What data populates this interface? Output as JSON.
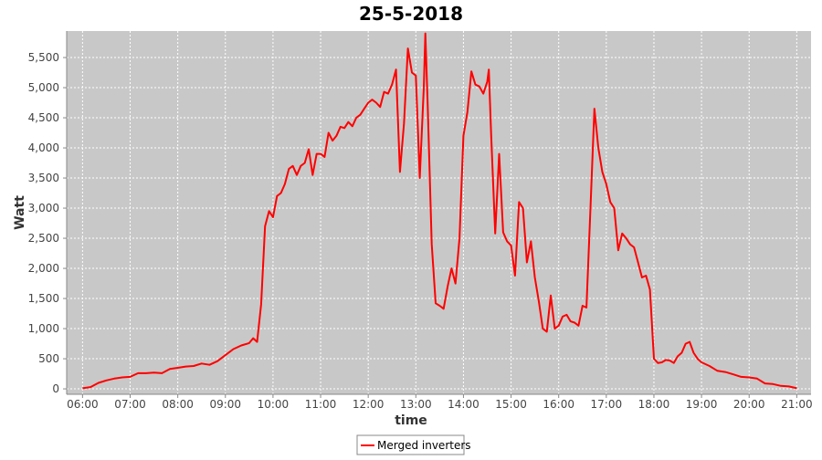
{
  "chart_data": {
    "type": "line",
    "title": "25-5-2018",
    "x_label": "time",
    "y_label": "Watt",
    "x": [
      "06:00",
      "06:10",
      "06:20",
      "06:30",
      "06:40",
      "06:50",
      "07:00",
      "07:10",
      "07:20",
      "07:30",
      "07:40",
      "07:50",
      "08:00",
      "08:10",
      "08:20",
      "08:30",
      "08:40",
      "08:50",
      "09:00",
      "09:10",
      "09:20",
      "09:30",
      "09:35",
      "09:40",
      "09:45",
      "09:50",
      "09:55",
      "10:00",
      "10:05",
      "10:10",
      "10:15",
      "10:20",
      "10:25",
      "10:30",
      "10:35",
      "10:40",
      "10:45",
      "10:50",
      "10:55",
      "11:00",
      "11:05",
      "11:10",
      "11:15",
      "11:20",
      "11:25",
      "11:30",
      "11:35",
      "11:40",
      "11:45",
      "11:50",
      "11:55",
      "12:00",
      "12:05",
      "12:10",
      "12:15",
      "12:20",
      "12:25",
      "12:30",
      "12:35",
      "12:40",
      "12:45",
      "12:50",
      "12:55",
      "13:00",
      "13:05",
      "13:10",
      "13:12",
      "13:15",
      "13:20",
      "13:25",
      "13:30",
      "13:35",
      "13:40",
      "13:45",
      "13:50",
      "13:55",
      "14:00",
      "14:05",
      "14:10",
      "14:15",
      "14:20",
      "14:25",
      "14:30",
      "14:32",
      "14:35",
      "14:40",
      "14:45",
      "14:50",
      "14:55",
      "15:00",
      "15:05",
      "15:10",
      "15:15",
      "15:20",
      "15:25",
      "15:30",
      "15:35",
      "15:40",
      "15:45",
      "15:50",
      "15:55",
      "16:00",
      "16:05",
      "16:10",
      "16:15",
      "16:20",
      "16:25",
      "16:30",
      "16:35",
      "16:40",
      "16:45",
      "16:50",
      "16:55",
      "17:00",
      "17:05",
      "17:10",
      "17:15",
      "17:20",
      "17:25",
      "17:30",
      "17:35",
      "17:40",
      "17:45",
      "17:50",
      "17:55",
      "18:00",
      "18:05",
      "18:10",
      "18:15",
      "18:20",
      "18:25",
      "18:30",
      "18:35",
      "18:40",
      "18:45",
      "18:50",
      "18:55",
      "19:00",
      "19:10",
      "19:20",
      "19:30",
      "19:40",
      "19:50",
      "20:00",
      "20:10",
      "20:20",
      "20:30",
      "20:40",
      "20:50",
      "21:00"
    ],
    "series": [
      {
        "name": "Merged inverters",
        "color": "#ff0000",
        "values": [
          10,
          30,
          100,
          140,
          170,
          190,
          200,
          260,
          260,
          270,
          260,
          330,
          350,
          370,
          380,
          420,
          400,
          460,
          560,
          660,
          720,
          760,
          840,
          780,
          1400,
          2700,
          2950,
          2850,
          3200,
          3250,
          3400,
          3650,
          3700,
          3550,
          3700,
          3750,
          3980,
          3550,
          3900,
          3900,
          3850,
          4250,
          4120,
          4200,
          4350,
          4330,
          4430,
          4360,
          4500,
          4550,
          4650,
          4750,
          4800,
          4750,
          4680,
          4930,
          4900,
          5050,
          5300,
          3600,
          4400,
          5650,
          5250,
          5200,
          3500,
          5000,
          5900,
          4700,
          2400,
          1420,
          1380,
          1330,
          1700,
          2000,
          1750,
          2500,
          4200,
          4600,
          5270,
          5050,
          5020,
          4900,
          5100,
          5300,
          4200,
          2580,
          3900,
          2600,
          2450,
          2380,
          1880,
          3100,
          3000,
          2100,
          2450,
          1850,
          1450,
          1000,
          950,
          1550,
          1000,
          1050,
          1200,
          1230,
          1120,
          1100,
          1050,
          1380,
          1350,
          3000,
          4650,
          4000,
          3600,
          3400,
          3100,
          3000,
          2300,
          2580,
          2500,
          2400,
          2350,
          2100,
          1850,
          1880,
          1650,
          500,
          430,
          440,
          480,
          470,
          430,
          540,
          600,
          750,
          780,
          600,
          500,
          440,
          380,
          300,
          280,
          240,
          200,
          190,
          170,
          90,
          80,
          50,
          40,
          10
        ]
      }
    ],
    "xlim": [
      "05:40",
      "21:18"
    ],
    "xticks": [
      "06:00",
      "07:00",
      "08:00",
      "09:00",
      "10:00",
      "11:00",
      "12:00",
      "13:00",
      "14:00",
      "15:00",
      "16:00",
      "17:00",
      "18:00",
      "19:00",
      "20:00",
      "21:00"
    ],
    "ylim": [
      -90,
      5940
    ],
    "yticks": [
      0,
      500,
      {
        "value": 1000,
        "label": "1,000"
      },
      {
        "value": 1500,
        "label": "1,500"
      },
      {
        "value": 2000,
        "label": "2,000"
      },
      {
        "value": 2500,
        "label": "2,500"
      },
      {
        "value": 3000,
        "label": "3,000"
      },
      {
        "value": 3500,
        "label": "3,500"
      },
      {
        "value": 4000,
        "label": "4,000"
      },
      {
        "value": 4500,
        "label": "4,500"
      },
      {
        "value": 5000,
        "label": "5,000"
      },
      {
        "value": 5500,
        "label": "5,500"
      }
    ],
    "grid": true
  }
}
